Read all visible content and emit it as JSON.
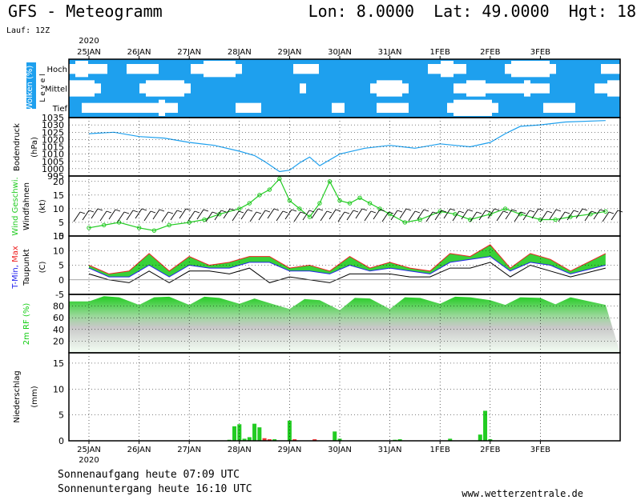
{
  "header": {
    "title_left": "GFS - Meteogramm",
    "title_right": "Lon: 8.0000  Lat: 49.0000  Hgt: 18",
    "run": "Lauf: 12Z"
  },
  "footer": {
    "sunrise": "Sonnenaufgang heute 07:09 UTC",
    "sunset": "Sonnenuntergang heute 16:10 UTC",
    "site": "www.wetterzentrale.de"
  },
  "colors": {
    "cloud": "#1ea0ee",
    "pressure": "#1ea0ee",
    "wind_speed": "#22cc22",
    "tmin": "#2222ee",
    "tmax": "#ee2222",
    "temp_fill_low": "#22cc22",
    "temp_fill_high": "#dddd22",
    "rh_fill": "#11cc11",
    "precip_bar": "#22cc22",
    "precip_bar_red": "#ee3333"
  },
  "chart_data": [
    {
      "type": "heatmap",
      "panel": "clouds",
      "ylabel": "Wolken (%)",
      "ylabel2": "L e v e l",
      "levels": [
        "Hoch",
        "Mittel",
        "Tief"
      ],
      "dates": [
        "25JAN",
        "26JAN",
        "27JAN",
        "28JAN",
        "29JAN",
        "30JAN",
        "31JAN",
        "1FEB",
        "2FEB",
        "3FEB"
      ],
      "year_top": "2020",
      "year_bottom": "2020"
    },
    {
      "type": "line",
      "panel": "pressure",
      "ylabel": "Bodendruck",
      "ylabel2": "(hPa)",
      "yticks": [
        995,
        1000,
        1005,
        1010,
        1015,
        1020,
        1025,
        1030,
        1035
      ],
      "ylim": [
        995,
        1035
      ],
      "x_days": [
        0,
        0.5,
        1,
        1.5,
        2,
        2.5,
        3,
        3.3,
        3.5,
        3.8,
        4,
        4.2,
        4.4,
        4.6,
        5,
        5.5,
        6,
        6.5,
        7,
        7.3,
        7.6,
        8,
        8.3,
        8.6,
        9,
        9.5,
        10.3
      ],
      "values": [
        1024,
        1025,
        1022,
        1021,
        1018,
        1016,
        1012,
        1009,
        1005,
        998,
        999,
        1004,
        1008,
        1002,
        1010,
        1014,
        1016,
        1014,
        1017,
        1016,
        1015,
        1018,
        1024,
        1029,
        1030,
        1032,
        1033
      ]
    },
    {
      "type": "line",
      "panel": "wind",
      "ylabel": "Wind Geschwi.",
      "ylabel2": "Windfahnen",
      "ylabel3": "(kt)",
      "yticks": [
        0,
        5,
        10,
        15,
        20
      ],
      "ylim": [
        0,
        22
      ],
      "x_days": [
        0,
        0.3,
        0.6,
        1,
        1.3,
        1.6,
        2,
        2.3,
        2.6,
        3,
        3.2,
        3.4,
        3.6,
        3.8,
        4,
        4.2,
        4.4,
        4.6,
        4.8,
        5,
        5.2,
        5.4,
        5.6,
        5.8,
        6,
        6.3,
        6.6,
        7,
        7.3,
        7.6,
        8,
        8.3,
        8.6,
        9,
        9.3,
        9.6,
        10,
        10.3
      ],
      "values": [
        3,
        4,
        5,
        3,
        2,
        4,
        5,
        6,
        8,
        10,
        12,
        15,
        17,
        21,
        13,
        10,
        7,
        12,
        20,
        13,
        12,
        14,
        12,
        10,
        8,
        5,
        6,
        9,
        8,
        6,
        8,
        10,
        8,
        6,
        6,
        7,
        8,
        9
      ]
    },
    {
      "type": "area",
      "panel": "temperature",
      "ylabel": "T-Min, Max",
      "ylabel2": "Taupunkt",
      "ylabel3": "(C)",
      "yticks": [
        -5,
        0,
        5,
        10,
        15
      ],
      "ylim": [
        -5,
        15
      ],
      "x_days": [
        0,
        0.4,
        0.8,
        1.2,
        1.6,
        2,
        2.4,
        2.8,
        3.2,
        3.6,
        4,
        4.4,
        4.8,
        5.2,
        5.6,
        6,
        6.4,
        6.8,
        7.2,
        7.6,
        8,
        8.4,
        8.8,
        9.2,
        9.6,
        10.3
      ],
      "series": [
        {
          "name": "T-Max",
          "values": [
            5,
            2,
            3,
            9,
            3,
            8,
            5,
            6,
            8,
            8,
            4,
            5,
            3,
            8,
            4,
            6,
            4,
            3,
            9,
            8,
            12,
            4,
            9,
            7,
            3,
            9
          ]
        },
        {
          "name": "T-Min",
          "values": [
            4,
            1,
            1,
            5,
            1,
            5,
            4,
            4,
            6,
            6,
            3,
            3,
            2,
            5,
            3,
            4,
            3,
            2,
            6,
            7,
            8,
            3,
            6,
            5,
            2,
            5
          ]
        },
        {
          "name": "Taupunkt",
          "values": [
            2,
            0,
            -1,
            3,
            -1,
            3,
            3,
            2,
            4,
            -1,
            1,
            0,
            -1,
            2,
            2,
            2,
            1,
            1,
            4,
            4,
            6,
            1,
            5,
            3,
            1,
            4
          ]
        }
      ]
    },
    {
      "type": "area",
      "panel": "humidity",
      "ylabel": "2m RF (%)",
      "yticks": [
        20,
        40,
        60,
        80
      ],
      "ylim": [
        0,
        100
      ],
      "x_days": [
        0,
        0.3,
        0.6,
        1,
        1.3,
        1.6,
        2,
        2.3,
        2.6,
        3,
        3.3,
        3.6,
        4,
        4.3,
        4.6,
        5,
        5.3,
        5.6,
        6,
        6.3,
        6.6,
        7,
        7.3,
        7.6,
        8,
        8.3,
        8.6,
        9,
        9.3,
        9.6,
        10.3
      ],
      "values": [
        88,
        97,
        95,
        82,
        95,
        96,
        82,
        96,
        94,
        84,
        93,
        85,
        75,
        92,
        90,
        73,
        94,
        93,
        75,
        95,
        94,
        84,
        96,
        95,
        90,
        82,
        95,
        94,
        83,
        95,
        82
      ]
    },
    {
      "type": "bar",
      "panel": "precipitation",
      "ylabel": "Niederschlag",
      "ylabel2": "(mm)",
      "yticks": [
        0,
        5,
        10,
        15
      ],
      "ylim": [
        0,
        17
      ],
      "x_days": [
        2.8,
        2.9,
        3.0,
        3.1,
        3.2,
        3.3,
        3.4,
        3.5,
        3.6,
        3.7,
        4.0,
        4.1,
        4.5,
        4.9,
        5.0,
        6.1,
        6.2,
        7.2,
        7.8,
        7.9,
        8.0
      ],
      "values": [
        0.2,
        2.8,
        3.2,
        0.4,
        0.7,
        3.3,
        2.6,
        0.5,
        0.3,
        0.3,
        3.9,
        0.3,
        0.3,
        1.8,
        0.4,
        0.2,
        0.3,
        0.4,
        1.2,
        5.8,
        0.3
      ],
      "colors": [
        "green",
        "green",
        "green",
        "green",
        "green",
        "green",
        "green",
        "red",
        "red",
        "green",
        "green",
        "red",
        "red",
        "green",
        "green",
        "green",
        "green",
        "green",
        "green",
        "green",
        "green"
      ]
    }
  ]
}
